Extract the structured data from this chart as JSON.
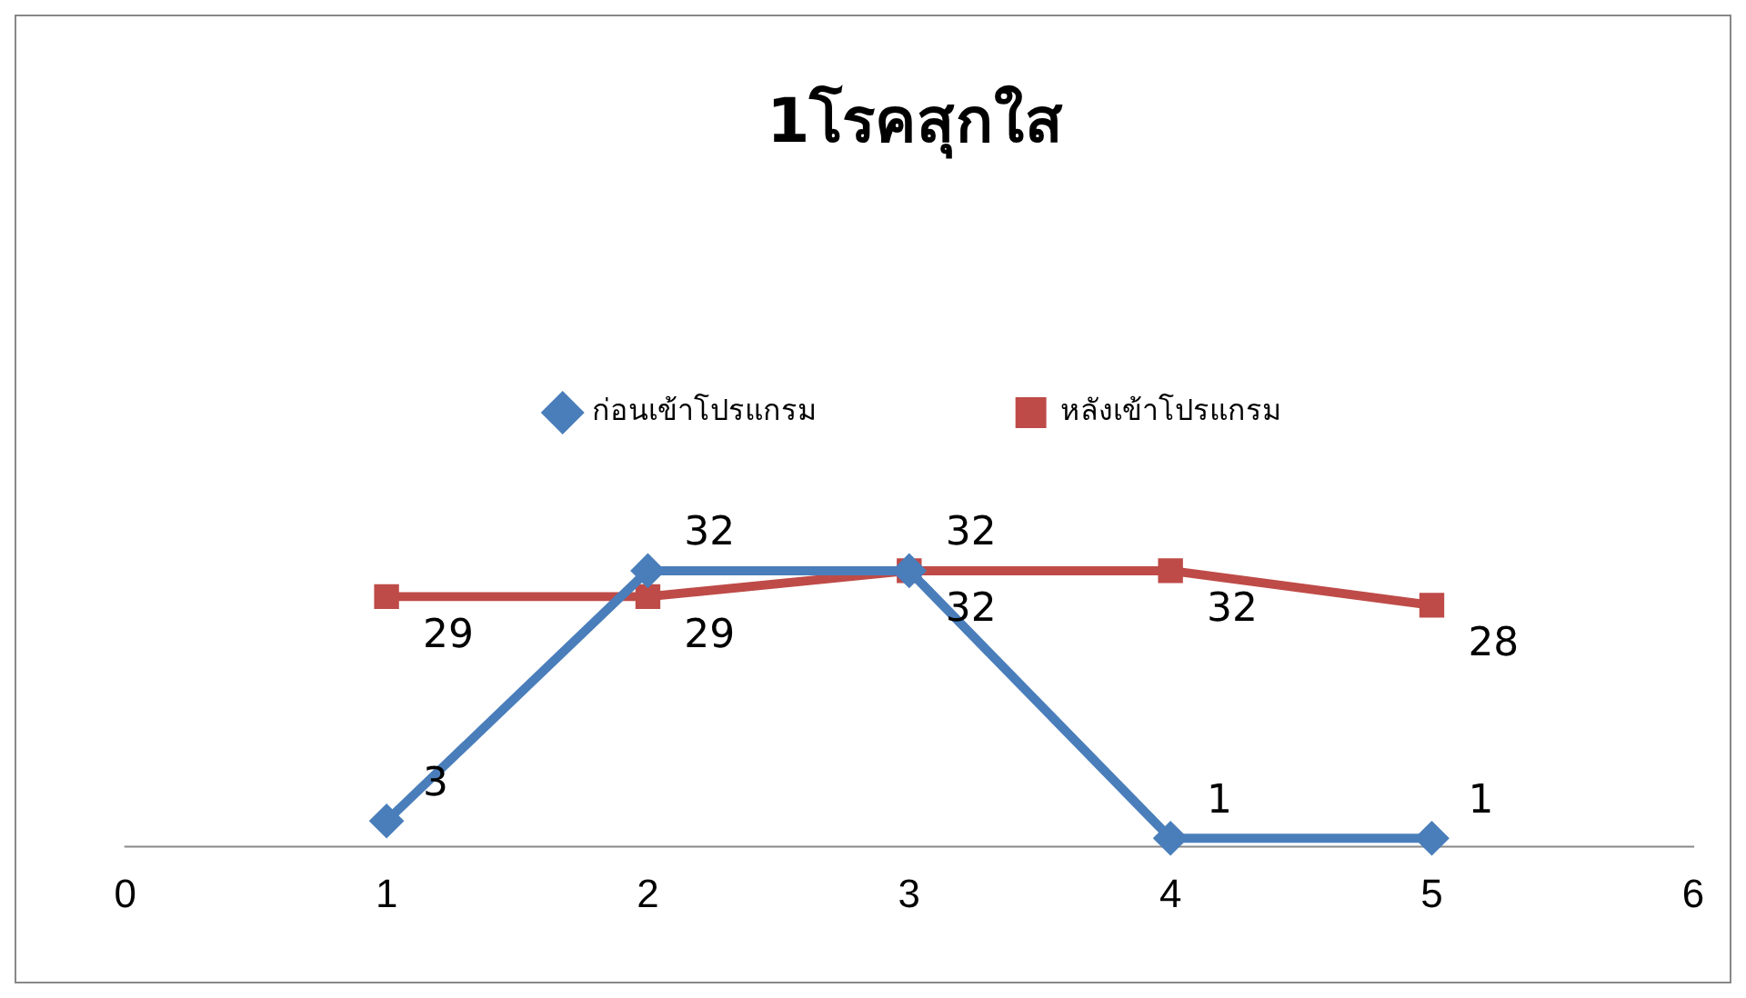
{
  "chart_data": {
    "type": "line",
    "title": "1โรคสุกใส",
    "x": [
      1,
      2,
      3,
      4,
      5
    ],
    "series": [
      {
        "name": "ก่อนเข้าโปรแกรม",
        "color": "#4a7ebb",
        "marker": "diamond",
        "values": [
          3,
          32,
          32,
          1,
          1
        ]
      },
      {
        "name": "หลังเข้าโปรแกรม",
        "color": "#be4b48",
        "marker": "square",
        "values": [
          29,
          29,
          32,
          32,
          28
        ]
      }
    ],
    "xlim": [
      0,
      6
    ],
    "xticks": [
      0,
      1,
      2,
      3,
      4,
      5,
      6
    ],
    "tick_labels": "x",
    "grid": false,
    "legend": "top",
    "data_labels": true,
    "line_style": "solid"
  }
}
